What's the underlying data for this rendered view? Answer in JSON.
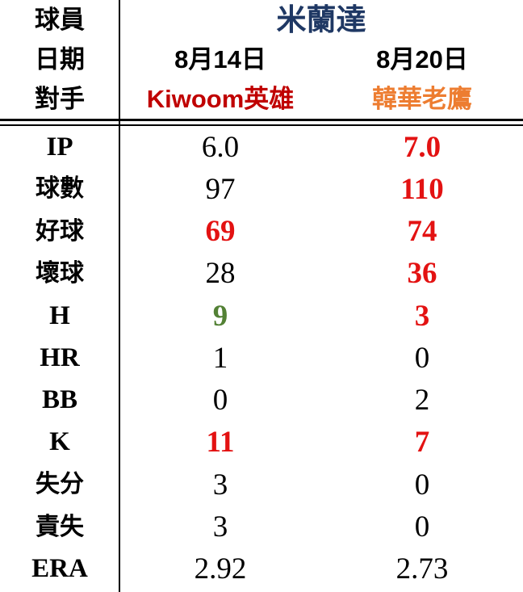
{
  "colors": {
    "navy": "#1F3864",
    "darkred": "#C00000",
    "orange": "#ED7D31",
    "red": "#E31212",
    "green": "#538135",
    "black": "#000000"
  },
  "header": {
    "player_label": "球員",
    "player_name": "米蘭達",
    "date_label": "日期",
    "dates": [
      "8月14日",
      "8月20日"
    ],
    "opponent_label": "對手",
    "opponents": [
      {
        "name": "Kiwoom英雄",
        "color": "darkred"
      },
      {
        "name": "韓華老鷹",
        "color": "orange"
      }
    ]
  },
  "stats": [
    {
      "label": "IP",
      "label_style": "latin",
      "values": [
        {
          "text": "6.0",
          "color": "black"
        },
        {
          "text": "7.0",
          "color": "red"
        }
      ]
    },
    {
      "label": "球數",
      "label_style": "cjk",
      "values": [
        {
          "text": "97",
          "color": "black"
        },
        {
          "text": "110",
          "color": "red"
        }
      ]
    },
    {
      "label": "好球",
      "label_style": "cjk",
      "values": [
        {
          "text": "69",
          "color": "red"
        },
        {
          "text": "74",
          "color": "red"
        }
      ]
    },
    {
      "label": "壞球",
      "label_style": "cjk",
      "values": [
        {
          "text": "28",
          "color": "black"
        },
        {
          "text": "36",
          "color": "red"
        }
      ]
    },
    {
      "label": "H",
      "label_style": "latin",
      "values": [
        {
          "text": "9",
          "color": "green"
        },
        {
          "text": "3",
          "color": "red"
        }
      ]
    },
    {
      "label": "HR",
      "label_style": "latin",
      "values": [
        {
          "text": "1",
          "color": "black"
        },
        {
          "text": "0",
          "color": "black"
        }
      ]
    },
    {
      "label": "BB",
      "label_style": "latin",
      "values": [
        {
          "text": "0",
          "color": "black"
        },
        {
          "text": "2",
          "color": "black"
        }
      ]
    },
    {
      "label": "K",
      "label_style": "latin",
      "values": [
        {
          "text": "11",
          "color": "red"
        },
        {
          "text": "7",
          "color": "red"
        }
      ]
    },
    {
      "label": "失分",
      "label_style": "cjk",
      "values": [
        {
          "text": "3",
          "color": "black"
        },
        {
          "text": "0",
          "color": "black"
        }
      ]
    },
    {
      "label": "責失",
      "label_style": "cjk",
      "values": [
        {
          "text": "3",
          "color": "black"
        },
        {
          "text": "0",
          "color": "black"
        }
      ]
    },
    {
      "label": "ERA",
      "label_style": "latin",
      "values": [
        {
          "text": "2.92",
          "color": "black"
        },
        {
          "text": "2.73",
          "color": "black"
        }
      ]
    }
  ],
  "chart_data": {
    "type": "table",
    "title": "米蘭達",
    "games": [
      {
        "date": "8月14日",
        "opponent": "Kiwoom英雄"
      },
      {
        "date": "8月20日",
        "opponent": "韓華老鷹"
      }
    ],
    "metrics": [
      "IP",
      "球數",
      "好球",
      "壞球",
      "H",
      "HR",
      "BB",
      "K",
      "失分",
      "責失",
      "ERA"
    ],
    "values": [
      [
        6.0,
        7.0
      ],
      [
        97,
        110
      ],
      [
        69,
        74
      ],
      [
        28,
        36
      ],
      [
        9,
        3
      ],
      [
        1,
        0
      ],
      [
        0,
        2
      ],
      [
        11,
        7
      ],
      [
        3,
        0
      ],
      [
        3,
        0
      ],
      [
        2.92,
        2.73
      ]
    ]
  }
}
